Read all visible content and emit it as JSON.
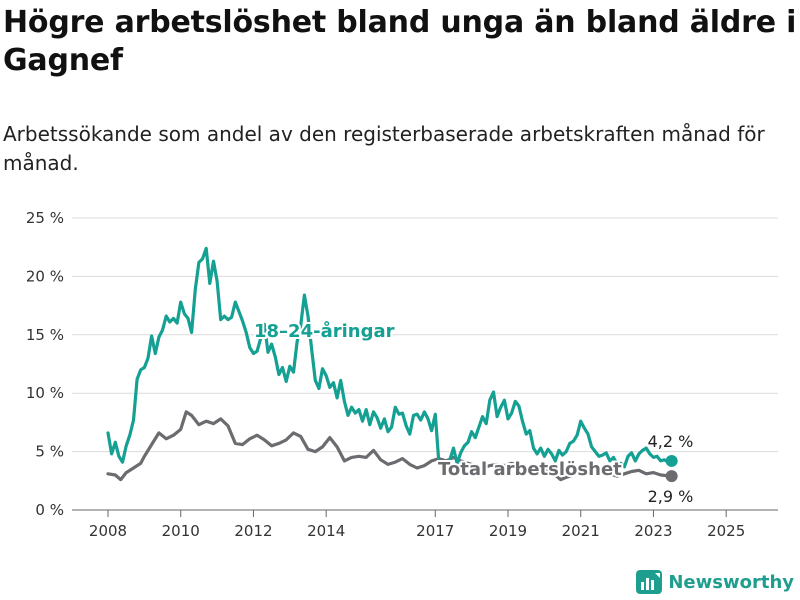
{
  "header": {
    "title": "Högre arbetslöshet bland unga än bland äldre i Gagnef",
    "subtitle": "Arbetssökande som andel av den registerbaserade arbetskraften månad för månad."
  },
  "brand": {
    "name": "Newsworthy",
    "color": "#1e9e8f"
  },
  "chart_data": {
    "type": "line",
    "xlim": [
      2008.0,
      2025.6
    ],
    "ylim": [
      0,
      25
    ],
    "x_ticks": [
      2008,
      2010,
      2012,
      2014,
      2017,
      2019,
      2021,
      2023,
      2025
    ],
    "x_tick_labels": [
      "2008",
      "2010",
      "2012",
      "2014",
      "2017",
      "2019",
      "2021",
      "2023",
      "2025"
    ],
    "y_ticks": [
      0,
      5,
      10,
      15,
      20,
      25
    ],
    "y_tick_labels": [
      "0 %",
      "5 %",
      "10 %",
      "15 %",
      "20 %",
      "25 %"
    ],
    "grid": "horizontal",
    "series": [
      {
        "name": "18–24-åringar",
        "color": "#14a093",
        "end_label": "4,2 %",
        "points": [
          [
            2008.0,
            6.6
          ],
          [
            2008.1,
            4.8
          ],
          [
            2008.2,
            5.8
          ],
          [
            2008.3,
            4.6
          ],
          [
            2008.4,
            4.1
          ],
          [
            2008.5,
            5.5
          ],
          [
            2008.6,
            6.4
          ],
          [
            2008.7,
            7.7
          ],
          [
            2008.8,
            11.2
          ],
          [
            2008.9,
            12.0
          ],
          [
            2009.0,
            12.2
          ],
          [
            2009.1,
            13.0
          ],
          [
            2009.2,
            14.9
          ],
          [
            2009.3,
            13.4
          ],
          [
            2009.4,
            14.8
          ],
          [
            2009.5,
            15.4
          ],
          [
            2009.6,
            16.6
          ],
          [
            2009.7,
            16.1
          ],
          [
            2009.8,
            16.4
          ],
          [
            2009.9,
            16.0
          ],
          [
            2010.0,
            17.8
          ],
          [
            2010.1,
            16.8
          ],
          [
            2010.2,
            16.4
          ],
          [
            2010.3,
            15.2
          ],
          [
            2010.4,
            18.9
          ],
          [
            2010.5,
            21.2
          ],
          [
            2010.6,
            21.5
          ],
          [
            2010.7,
            22.4
          ],
          [
            2010.8,
            19.4
          ],
          [
            2010.9,
            21.3
          ],
          [
            2011.0,
            19.6
          ],
          [
            2011.1,
            16.3
          ],
          [
            2011.2,
            16.6
          ],
          [
            2011.3,
            16.3
          ],
          [
            2011.4,
            16.5
          ],
          [
            2011.5,
            17.8
          ],
          [
            2011.6,
            17.0
          ],
          [
            2011.7,
            16.2
          ],
          [
            2011.8,
            15.2
          ],
          [
            2011.9,
            13.9
          ],
          [
            2012.0,
            13.4
          ],
          [
            2012.1,
            13.6
          ],
          [
            2012.2,
            14.7
          ],
          [
            2012.3,
            15.9
          ],
          [
            2012.4,
            13.5
          ],
          [
            2012.5,
            14.2
          ],
          [
            2012.6,
            13.1
          ],
          [
            2012.7,
            11.6
          ],
          [
            2012.8,
            12.2
          ],
          [
            2012.9,
            11.0
          ],
          [
            2013.0,
            12.3
          ],
          [
            2013.1,
            11.8
          ],
          [
            2013.2,
            14.4
          ],
          [
            2013.3,
            15.8
          ],
          [
            2013.4,
            18.4
          ],
          [
            2013.5,
            16.6
          ],
          [
            2013.6,
            13.8
          ],
          [
            2013.7,
            11.1
          ],
          [
            2013.8,
            10.4
          ],
          [
            2013.9,
            12.1
          ],
          [
            2014.0,
            11.5
          ],
          [
            2014.1,
            10.5
          ],
          [
            2014.2,
            10.9
          ],
          [
            2014.3,
            9.6
          ],
          [
            2014.4,
            11.1
          ],
          [
            2014.5,
            9.3
          ],
          [
            2014.6,
            8.1
          ],
          [
            2014.7,
            8.8
          ],
          [
            2014.8,
            8.3
          ],
          [
            2014.9,
            8.6
          ],
          [
            2015.0,
            7.6
          ],
          [
            2015.1,
            8.6
          ],
          [
            2015.2,
            7.3
          ],
          [
            2015.3,
            8.4
          ],
          [
            2015.4,
            7.9
          ],
          [
            2015.5,
            7.0
          ],
          [
            2015.6,
            7.8
          ],
          [
            2015.7,
            6.7
          ],
          [
            2015.8,
            7.1
          ],
          [
            2015.9,
            8.8
          ],
          [
            2016.0,
            8.2
          ],
          [
            2016.1,
            8.3
          ],
          [
            2016.2,
            7.2
          ],
          [
            2016.3,
            6.5
          ],
          [
            2016.4,
            8.1
          ],
          [
            2016.5,
            8.2
          ],
          [
            2016.6,
            7.7
          ],
          [
            2016.7,
            8.4
          ],
          [
            2016.8,
            7.8
          ],
          [
            2016.9,
            6.8
          ],
          [
            2017.0,
            8.2
          ],
          [
            2017.1,
            4.0
          ],
          [
            2017.2,
            4.1
          ],
          [
            2017.3,
            3.7
          ],
          [
            2017.4,
            4.3
          ],
          [
            2017.5,
            5.3
          ],
          [
            2017.6,
            4.0
          ],
          [
            2017.7,
            4.9
          ],
          [
            2017.8,
            5.5
          ],
          [
            2017.9,
            5.8
          ],
          [
            2018.0,
            6.7
          ],
          [
            2018.1,
            6.2
          ],
          [
            2018.2,
            7.1
          ],
          [
            2018.3,
            8.0
          ],
          [
            2018.4,
            7.4
          ],
          [
            2018.5,
            9.4
          ],
          [
            2018.6,
            10.1
          ],
          [
            2018.7,
            8.0
          ],
          [
            2018.8,
            8.8
          ],
          [
            2018.9,
            9.4
          ],
          [
            2019.0,
            7.8
          ],
          [
            2019.1,
            8.3
          ],
          [
            2019.2,
            9.3
          ],
          [
            2019.3,
            8.9
          ],
          [
            2019.4,
            7.6
          ],
          [
            2019.5,
            6.5
          ],
          [
            2019.6,
            6.8
          ],
          [
            2019.7,
            5.3
          ],
          [
            2019.8,
            4.8
          ],
          [
            2019.9,
            5.3
          ],
          [
            2020.0,
            4.6
          ],
          [
            2020.1,
            5.2
          ],
          [
            2020.2,
            4.8
          ],
          [
            2020.3,
            4.2
          ],
          [
            2020.4,
            5.1
          ],
          [
            2020.5,
            4.7
          ],
          [
            2020.6,
            5.0
          ],
          [
            2020.7,
            5.7
          ],
          [
            2020.8,
            5.9
          ],
          [
            2020.9,
            6.4
          ],
          [
            2021.0,
            7.6
          ],
          [
            2021.1,
            7.0
          ],
          [
            2021.2,
            6.5
          ],
          [
            2021.3,
            5.4
          ],
          [
            2021.4,
            5.0
          ],
          [
            2021.5,
            4.6
          ],
          [
            2021.6,
            4.7
          ],
          [
            2021.7,
            4.9
          ],
          [
            2021.8,
            4.2
          ],
          [
            2021.9,
            4.5
          ],
          [
            2022.0,
            3.9
          ],
          [
            2022.1,
            4.0
          ],
          [
            2022.2,
            3.7
          ],
          [
            2022.3,
            4.6
          ],
          [
            2022.4,
            4.9
          ],
          [
            2022.5,
            4.2
          ],
          [
            2022.6,
            4.8
          ],
          [
            2022.7,
            5.1
          ],
          [
            2022.8,
            5.3
          ],
          [
            2022.9,
            4.8
          ],
          [
            2023.0,
            4.5
          ],
          [
            2023.1,
            4.6
          ],
          [
            2023.2,
            4.2
          ],
          [
            2023.3,
            4.3
          ],
          [
            2023.4,
            4.1
          ],
          [
            2023.5,
            4.2
          ]
        ]
      },
      {
        "name": "Total arbetslöshet",
        "color": "#6b6b70",
        "end_label": "2,9 %",
        "points": [
          [
            2008.0,
            3.1
          ],
          [
            2008.2,
            3.0
          ],
          [
            2008.35,
            2.6
          ],
          [
            2008.5,
            3.2
          ],
          [
            2008.7,
            3.6
          ],
          [
            2008.9,
            4.0
          ],
          [
            2009.0,
            4.6
          ],
          [
            2009.2,
            5.6
          ],
          [
            2009.4,
            6.6
          ],
          [
            2009.6,
            6.1
          ],
          [
            2009.8,
            6.4
          ],
          [
            2010.0,
            6.9
          ],
          [
            2010.15,
            8.4
          ],
          [
            2010.3,
            8.1
          ],
          [
            2010.5,
            7.3
          ],
          [
            2010.7,
            7.6
          ],
          [
            2010.9,
            7.4
          ],
          [
            2011.1,
            7.8
          ],
          [
            2011.3,
            7.2
          ],
          [
            2011.5,
            5.7
          ],
          [
            2011.7,
            5.6
          ],
          [
            2011.9,
            6.1
          ],
          [
            2012.1,
            6.4
          ],
          [
            2012.3,
            6.0
          ],
          [
            2012.5,
            5.5
          ],
          [
            2012.7,
            5.7
          ],
          [
            2012.9,
            6.0
          ],
          [
            2013.1,
            6.6
          ],
          [
            2013.3,
            6.3
          ],
          [
            2013.5,
            5.2
          ],
          [
            2013.7,
            5.0
          ],
          [
            2013.9,
            5.4
          ],
          [
            2014.1,
            6.2
          ],
          [
            2014.3,
            5.4
          ],
          [
            2014.5,
            4.2
          ],
          [
            2014.7,
            4.5
          ],
          [
            2014.9,
            4.6
          ],
          [
            2015.1,
            4.5
          ],
          [
            2015.3,
            5.1
          ],
          [
            2015.5,
            4.3
          ],
          [
            2015.7,
            3.9
          ],
          [
            2015.9,
            4.1
          ],
          [
            2016.1,
            4.4
          ],
          [
            2016.3,
            3.9
          ],
          [
            2016.5,
            3.6
          ],
          [
            2016.7,
            3.8
          ],
          [
            2016.9,
            4.2
          ],
          [
            2017.1,
            4.4
          ],
          [
            2017.3,
            4.2
          ],
          [
            2017.5,
            4.5
          ],
          [
            2017.7,
            4.2
          ],
          [
            2017.9,
            4.0
          ],
          [
            2018.1,
            3.8
          ],
          [
            2018.3,
            3.6
          ],
          [
            2018.5,
            3.8
          ],
          [
            2018.7,
            3.9
          ],
          [
            2018.9,
            3.8
          ],
          [
            2019.1,
            4.0
          ],
          [
            2019.3,
            3.8
          ],
          [
            2019.5,
            3.5
          ],
          [
            2019.7,
            3.4
          ],
          [
            2019.9,
            3.3
          ],
          [
            2020.1,
            3.5
          ],
          [
            2020.3,
            3.0
          ],
          [
            2020.45,
            2.6
          ],
          [
            2020.6,
            2.8
          ],
          [
            2020.8,
            3.0
          ],
          [
            2021.0,
            3.3
          ],
          [
            2021.2,
            3.4
          ],
          [
            2021.4,
            3.1
          ],
          [
            2021.6,
            3.3
          ],
          [
            2021.8,
            3.1
          ],
          [
            2022.0,
            2.9
          ],
          [
            2022.2,
            3.1
          ],
          [
            2022.4,
            3.3
          ],
          [
            2022.6,
            3.4
          ],
          [
            2022.8,
            3.1
          ],
          [
            2023.0,
            3.2
          ],
          [
            2023.2,
            3.0
          ],
          [
            2023.5,
            2.9
          ]
        ]
      }
    ]
  }
}
